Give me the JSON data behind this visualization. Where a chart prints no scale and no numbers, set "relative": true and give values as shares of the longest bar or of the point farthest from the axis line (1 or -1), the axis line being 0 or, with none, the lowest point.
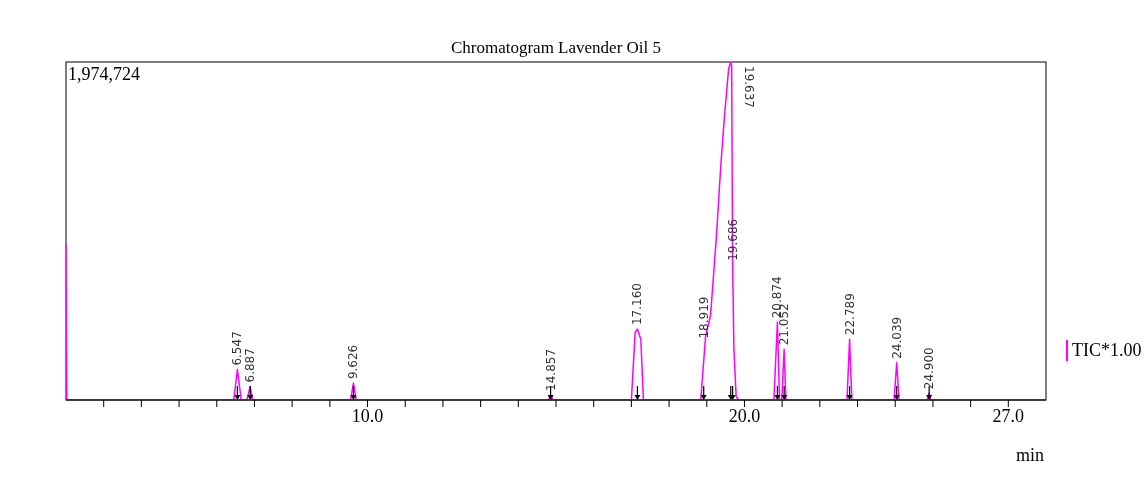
{
  "chart_data": {
    "type": "line",
    "title": "Chromatogram Lavender Oil 5",
    "xlabel": "min",
    "relative": true,
    "xlim": [
      2,
      28
    ],
    "xticks": [
      {
        "value": 3,
        "label": null
      },
      {
        "value": 4,
        "label": null
      },
      {
        "value": 5,
        "label": null
      },
      {
        "value": 6,
        "label": null
      },
      {
        "value": 7,
        "label": null
      },
      {
        "value": 8,
        "label": null
      },
      {
        "value": 9,
        "label": null
      },
      {
        "value": 10,
        "label": "10.0"
      },
      {
        "value": 11,
        "label": null
      },
      {
        "value": 12,
        "label": null
      },
      {
        "value": 13,
        "label": null
      },
      {
        "value": 14,
        "label": null
      },
      {
        "value": 15,
        "label": null
      },
      {
        "value": 16,
        "label": null
      },
      {
        "value": 17,
        "label": null
      },
      {
        "value": 18,
        "label": null
      },
      {
        "value": 19,
        "label": null
      },
      {
        "value": 20,
        "label": "20.0"
      },
      {
        "value": 21,
        "label": null
      },
      {
        "value": 22,
        "label": null
      },
      {
        "value": 23,
        "label": null
      },
      {
        "value": 24,
        "label": null
      },
      {
        "value": 25,
        "label": null
      },
      {
        "value": 26,
        "label": null
      },
      {
        "value": 27,
        "label": "27.0"
      }
    ],
    "series": [
      {
        "name": "TIC*1.00",
        "color": "#ff00ff",
        "x": [
          2.0,
          2.02,
          6.45,
          6.547,
          6.65,
          6.8,
          6.887,
          6.95,
          9.55,
          9.626,
          9.7,
          14.8,
          14.857,
          14.92,
          17.0,
          17.1,
          17.16,
          17.25,
          17.32,
          18.84,
          18.97,
          19.1,
          19.26,
          19.37,
          19.47,
          19.58,
          19.637,
          19.66,
          19.686,
          19.72,
          19.78,
          19.85,
          20.78,
          20.874,
          20.93,
          20.99,
          21.052,
          21.1,
          22.72,
          22.789,
          22.85,
          23.97,
          24.039,
          24.1,
          24.85,
          24.9,
          24.95,
          28.0
        ],
        "values": [
          0.46,
          0,
          0,
          0.09,
          0,
          0,
          0.04,
          0,
          0,
          0.05,
          0,
          0,
          0.015,
          0,
          0,
          0.2,
          0.21,
          0.18,
          0,
          0,
          0.19,
          0.25,
          0.49,
          0.69,
          0.84,
          0.98,
          1,
          0.99,
          0.4,
          0.15,
          0.01,
          0,
          0,
          0.23,
          0,
          0,
          0.15,
          0,
          0,
          0.18,
          0,
          0,
          0.11,
          0,
          0,
          0.02,
          0,
          0
        ]
      }
    ],
    "annotations": [
      "1,974,724",
      {
        "text": "6.547",
        "x": 6.547,
        "y": 0.09
      },
      {
        "text": "6.887",
        "x": 6.887,
        "y": 0.04
      },
      {
        "text": "9.626",
        "x": 9.626,
        "y": 0.05
      },
      {
        "text": "14.857",
        "x": 14.857,
        "y": 0.015
      },
      {
        "text": "17.160",
        "x": 17.16,
        "y": 0.21
      },
      {
        "text": "18.919",
        "x": 18.919,
        "y": 0.17
      },
      {
        "text": "19.637",
        "x": 19.637,
        "y": 1
      },
      {
        "text": "19.686",
        "x": 19.686,
        "y": 0.4
      },
      {
        "text": "20.874",
        "x": 20.874,
        "y": 0.23
      },
      {
        "text": "21.052",
        "x": 21.052,
        "y": 0.15
      },
      {
        "text": "22.789",
        "x": 22.789,
        "y": 0.18
      },
      {
        "text": "24.039",
        "x": 24.039,
        "y": 0.11
      },
      {
        "text": "24.900",
        "x": 24.9,
        "y": 0.02
      }
    ],
    "grid": false,
    "legend": "right",
    "marker": "none",
    "line_style": "solid"
  }
}
